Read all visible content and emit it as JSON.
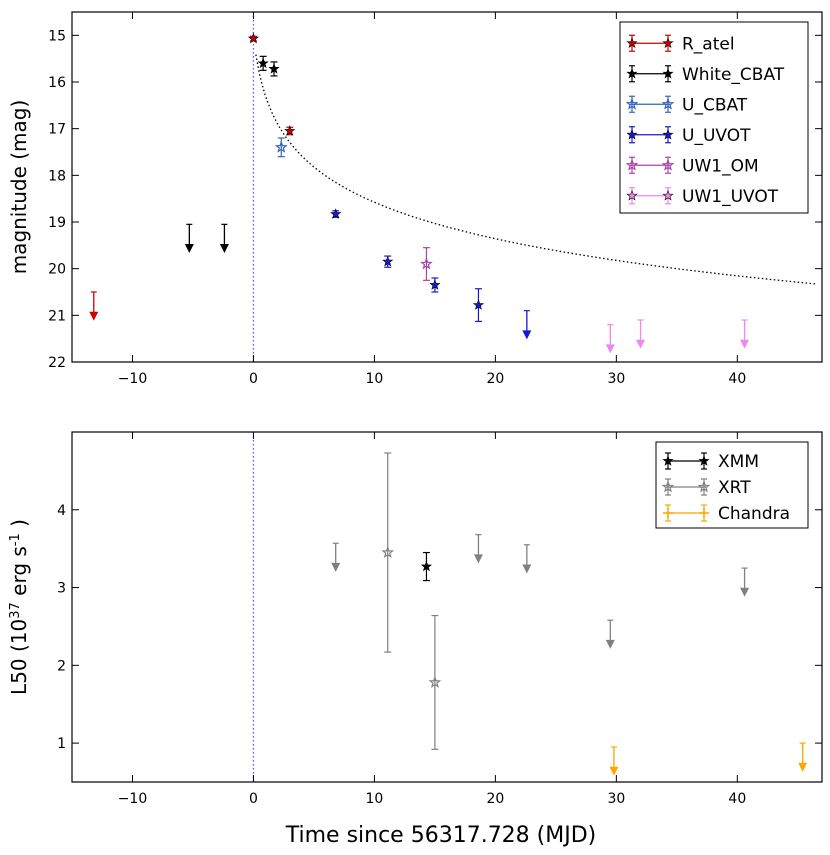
{
  "figure": {
    "xlabel": "Time since 56317.728 (MJD)"
  },
  "chart_data": [
    {
      "type": "scatter",
      "ylabel": "magnitude (mag)",
      "xlim": [
        -15,
        47
      ],
      "ylim": [
        14.5,
        22
      ],
      "y_inverted": true,
      "xticks": [
        -10,
        0,
        10,
        20,
        30,
        40
      ],
      "yticks": [
        15,
        16,
        17,
        18,
        19,
        20,
        21,
        22
      ],
      "xtick_labels": [
        "−10",
        "0",
        "10",
        "20",
        "30",
        "40"
      ],
      "ytick_labels": [
        "15",
        "16",
        "17",
        "18",
        "19",
        "20",
        "21",
        "22"
      ],
      "vline_x": 0,
      "fit_curve": {
        "style": "dotted",
        "color": "#000000",
        "x_range": [
          0.2,
          46.5
        ],
        "model": "power law decay"
      },
      "legend_position": "top-right",
      "series": [
        {
          "name": "R_atel",
          "color": "#cc0000",
          "marker": "filled-star",
          "points": [
            {
              "x": 0.0,
              "y": 15.07,
              "yerr": 0.05
            },
            {
              "x": 3.0,
              "y": 17.05,
              "yerr": 0.08
            }
          ],
          "upper_limits": [
            {
              "x": -13.2,
              "y": 20.5
            }
          ]
        },
        {
          "name": "White_CBAT",
          "color": "#000000",
          "marker": "filled-star",
          "points": [
            {
              "x": 0.8,
              "y": 15.6,
              "yerr": 0.15
            },
            {
              "x": 1.7,
              "y": 15.72,
              "yerr": 0.15
            }
          ],
          "upper_limits": [
            {
              "x": -5.3,
              "y": 19.05
            },
            {
              "x": -2.4,
              "y": 19.05
            }
          ]
        },
        {
          "name": "U_CBAT",
          "color": "#3366bb",
          "marker": "open-star",
          "points": [
            {
              "x": 2.3,
              "y": 17.4,
              "yerr": 0.2
            }
          ],
          "upper_limits": []
        },
        {
          "name": "U_UVOT",
          "color": "#1a1acc",
          "marker": "filled-star",
          "points": [
            {
              "x": 6.8,
              "y": 18.83,
              "yerr": 0.07
            },
            {
              "x": 11.1,
              "y": 19.85,
              "yerr": 0.12
            },
            {
              "x": 15.0,
              "y": 20.35,
              "yerr": 0.15
            },
            {
              "x": 18.6,
              "y": 20.78,
              "yerr": 0.35
            }
          ],
          "upper_limits": [
            {
              "x": 22.6,
              "y": 20.9
            }
          ]
        },
        {
          "name": "UW1_OM",
          "color": "#aa44aa",
          "marker": "open-star",
          "points": [
            {
              "x": 14.3,
              "y": 19.9,
              "yerr": 0.35
            }
          ],
          "upper_limits": []
        },
        {
          "name": "UW1_UVOT",
          "color": "#ee88ee",
          "marker": "filled-star",
          "points": [],
          "upper_limits": [
            {
              "x": 29.5,
              "y": 21.2
            },
            {
              "x": 32.0,
              "y": 21.1
            },
            {
              "x": 40.6,
              "y": 21.1
            }
          ]
        }
      ]
    },
    {
      "type": "scatter",
      "ylabel_main": "L50 (10",
      "ylabel_sup": "37",
      "ylabel_mid": " erg s",
      "ylabel_sup2": "-1",
      "ylabel_end": " )",
      "xlim": [
        -15,
        47
      ],
      "ylim": [
        0.5,
        5.0
      ],
      "xticks": [
        -10,
        0,
        10,
        20,
        30,
        40
      ],
      "yticks": [
        1,
        2,
        3,
        4
      ],
      "xtick_labels": [
        "−10",
        "0",
        "10",
        "20",
        "30",
        "40"
      ],
      "ytick_labels": [
        "1",
        "2",
        "3",
        "4"
      ],
      "vline_x": 0,
      "legend_position": "top-right",
      "series": [
        {
          "name": "XMM",
          "color": "#000000",
          "marker": "filled-star",
          "points": [
            {
              "x": 14.3,
              "y": 3.27,
              "yerr": 0.18
            }
          ],
          "upper_limits": []
        },
        {
          "name": "XRT",
          "color": "#808080",
          "marker": "open-star",
          "points": [
            {
              "x": 11.1,
              "y": 3.45,
              "yerr_low": 1.28,
              "yerr_high": 1.28
            },
            {
              "x": 15.0,
              "y": 1.78,
              "yerr_low": 0.86,
              "yerr_high": 0.86
            }
          ],
          "upper_limits": [
            {
              "x": 6.8,
              "y": 3.57
            },
            {
              "x": 18.6,
              "y": 3.68
            },
            {
              "x": 22.6,
              "y": 3.55
            },
            {
              "x": 29.5,
              "y": 2.58
            },
            {
              "x": 40.6,
              "y": 3.25
            }
          ]
        },
        {
          "name": "Chandra",
          "color": "#ffa500",
          "marker": "cross",
          "points": [],
          "upper_limits": [
            {
              "x": 29.8,
              "y": 0.95
            },
            {
              "x": 45.4,
              "y": 1.0
            }
          ]
        }
      ]
    }
  ]
}
